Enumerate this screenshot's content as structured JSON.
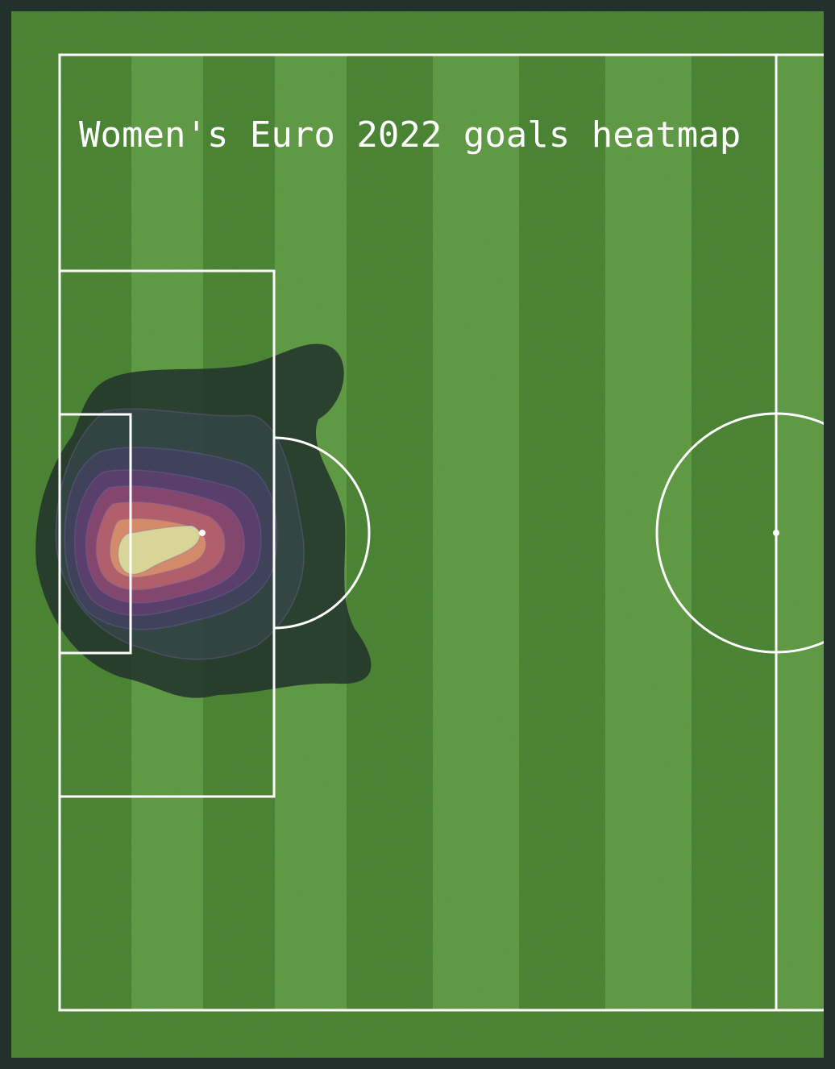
{
  "chart_data": {
    "type": "heatmap",
    "title": "Women's Euro 2022 goals heatmap",
    "xlabel": "",
    "ylabel": "",
    "view": "half-pitch (goal on left, halfway line on right)",
    "legend": "none",
    "grid": false,
    "colors": {
      "background": "#22312b",
      "grass_dark": "#4f8a37",
      "grass_light": "#64a148",
      "lines": "#ffffff",
      "density_low": "#22312b",
      "density_mid": "#5b3f7a",
      "density_high": "#e08a6a",
      "density_peak": "#d8e3a0"
    },
    "density_levels": [
      {
        "level": 1,
        "color": "#22312b"
      },
      {
        "level": 2,
        "color": "#3a4a55"
      },
      {
        "level": 3,
        "color": "#4a3f6a"
      },
      {
        "level": 4,
        "color": "#6a3d78"
      },
      {
        "level": 5,
        "color": "#9a4a6e"
      },
      {
        "level": 6,
        "color": "#c56a6a"
      },
      {
        "level": 7,
        "color": "#e0996a"
      },
      {
        "level": 8,
        "color": "#d8e3a0"
      }
    ],
    "peak_location": "inside the six-yard box, near the penalty spot line"
  }
}
